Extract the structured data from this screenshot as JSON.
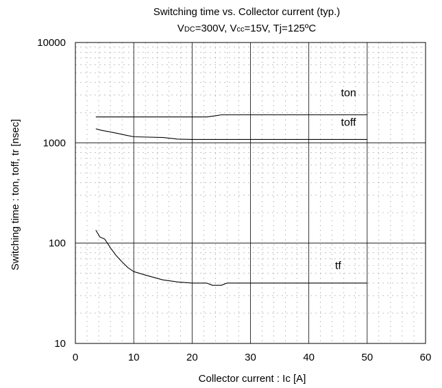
{
  "chart_data": {
    "type": "line",
    "title": "Switching time vs. Collector current (typ.)",
    "subtitle": "VDC=300V, Vcc=15V, Tj=125ºC",
    "xlabel": "Collector current : Ic [A]",
    "ylabel": "Switching time : ton, toff, tr [nsec]",
    "x_scale": "linear",
    "y_scale": "log",
    "xlim": [
      0,
      60
    ],
    "ylim": [
      10,
      10000
    ],
    "x_ticks": [
      0,
      10,
      20,
      30,
      40,
      50,
      60
    ],
    "y_ticks": [
      10,
      100,
      1000,
      10000
    ],
    "x_tick_labels": [
      "0",
      "10",
      "20",
      "30",
      "40",
      "50",
      "60"
    ],
    "y_tick_labels": [
      "10",
      "100",
      "1000",
      "10000"
    ],
    "grid": true,
    "series": [
      {
        "name": "ton",
        "x": [
          3.5,
          10,
          15,
          20,
          22.5,
          24,
          25,
          30,
          40,
          50
        ],
        "y": [
          1810,
          1810,
          1810,
          1810,
          1810,
          1860,
          1900,
          1900,
          1900,
          1900
        ]
      },
      {
        "name": "toff",
        "x": [
          3.5,
          4.5,
          5.5,
          7,
          9,
          10,
          15,
          17.5,
          20,
          25,
          30,
          40,
          50
        ],
        "y": [
          1380,
          1330,
          1300,
          1250,
          1180,
          1150,
          1130,
          1090,
          1080,
          1080,
          1080,
          1080,
          1080
        ]
      },
      {
        "name": "tf",
        "x": [
          3.5,
          4.2,
          5,
          5.5,
          6,
          7,
          8,
          9,
          10,
          12,
          15,
          17.5,
          20,
          22.5,
          23.5,
          25,
          26,
          30,
          40,
          50
        ],
        "y": [
          135,
          115,
          110,
          100,
          90,
          75,
          65,
          57,
          52,
          48,
          43,
          41,
          40,
          40,
          38,
          38,
          40,
          40,
          40,
          40
        ]
      }
    ],
    "annotations": [
      {
        "text": "ton",
        "x": 45.5,
        "y": 2900
      },
      {
        "text": "toff",
        "x": 45.5,
        "y": 1480
      },
      {
        "text": "tf",
        "x": 44.5,
        "y": 55
      }
    ]
  }
}
